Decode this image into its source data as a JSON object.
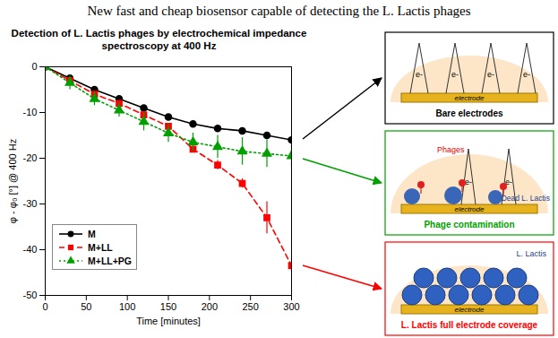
{
  "header": {
    "title": "New fast and cheap biosensor capable of detecting the L. Lactis phages"
  },
  "chart_data": {
    "type": "line",
    "title": "Detection of L. Lactis phages by electrochemical impedance spectroscopy at 400 Hz",
    "x_label": "Time [minutes]",
    "y_label": "φ - φ₀ [°] @ 400 Hz",
    "x": [
      0,
      30,
      60,
      90,
      120,
      150,
      180,
      210,
      240,
      270,
      300
    ],
    "series": [
      {
        "name": "M",
        "color": "#000000",
        "marker": "circle",
        "line_style": "solid",
        "values": [
          0,
          -2.5,
          -5,
          -7,
          -9,
          -11,
          -12.5,
          -13.5,
          -14,
          -15,
          -16
        ],
        "errors": [
          0.3,
          0.5,
          0.5,
          0.5,
          0.5,
          0.5,
          0.5,
          0.5,
          0.5,
          0.5,
          0.8
        ]
      },
      {
        "name": "M+LL",
        "color": "#ff0000",
        "marker": "square",
        "line_style": "dashed",
        "values": [
          0,
          -3,
          -6,
          -8,
          -10.5,
          -13,
          -18,
          -21.5,
          -25.5,
          -33,
          -43.5
        ],
        "errors": [
          0.3,
          0.5,
          0.5,
          0.5,
          0.5,
          0.5,
          0.5,
          1,
          1,
          3.5,
          1.5
        ]
      },
      {
        "name": "M+LL+PG",
        "color": "#00a000",
        "marker": "triangle",
        "line_style": "dotted",
        "values": [
          0,
          -3.5,
          -7,
          -9.5,
          -12,
          -14.5,
          -16.5,
          -17.5,
          -18.5,
          -19,
          -19.5
        ],
        "errors": [
          0.5,
          1.5,
          1.5,
          1.5,
          2,
          2,
          2,
          2.5,
          3,
          3,
          2.5
        ]
      }
    ],
    "xlim": [
      0,
      300
    ],
    "xticks": [
      0,
      50,
      100,
      150,
      200,
      250,
      300
    ],
    "ylim": [
      -50,
      0
    ],
    "yticks": [
      -50,
      -40,
      -30,
      -20,
      -10,
      0
    ],
    "grid": false,
    "legend": "lower left"
  },
  "panels": [
    {
      "caption": "Bare electrodes",
      "color": "#000000",
      "electrode": "electrode",
      "electron": "e-",
      "labels": []
    },
    {
      "caption": "Phage contamination",
      "color": "#00a000",
      "electrode": "electrode",
      "electron": "e-",
      "labels": [
        "Phages",
        "Dead L. Lactis"
      ]
    },
    {
      "caption": "L. Lactis full electrode coverage",
      "color": "#ff0000",
      "electrode": "electrode",
      "labels": [
        "L. Lactis"
      ]
    }
  ]
}
